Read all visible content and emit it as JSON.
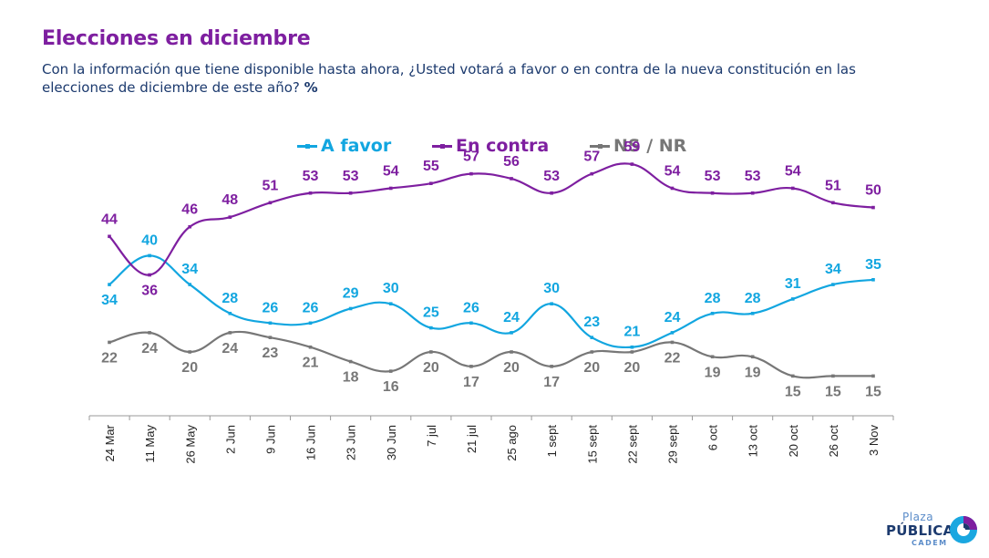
{
  "header": {
    "title": "Elecciones en diciembre",
    "subtitle": "Con la información que tiene disponible hasta ahora, ¿Usted votará a favor o en contra de la nueva constitución en las elecciones de diciembre de este año?",
    "subtitle_unit": "%"
  },
  "logo": {
    "line1": "Plaza",
    "line2": "PÚBLICA",
    "line3": "CADEM"
  },
  "colors": {
    "title": "#7e1fa0",
    "a_favor": "#12a6e0",
    "en_contra": "#7e1fa0",
    "ns_nr": "#777777",
    "axis": "#9a9a9a",
    "text_dark": "#1c3a6e"
  },
  "chart_data": {
    "type": "line",
    "title": "Elecciones en diciembre",
    "x": [
      "24 Mar",
      "11 May",
      "26 May",
      "2 Jun",
      "9 Jun",
      "16 Jun",
      "23 Jun",
      "30 Jun",
      "7 jul",
      "21 jul",
      "25 ago",
      "1 sept",
      "15 sept",
      "22 sept",
      "29 sept",
      "6 oct",
      "13 oct",
      "20 oct",
      "26 oct",
      "3 Nov"
    ],
    "series": [
      {
        "name": "A favor",
        "color": "#12a6e0",
        "values": [
          34,
          40,
          34,
          28,
          26,
          26,
          29,
          30,
          25,
          26,
          24,
          30,
          23,
          21,
          24,
          28,
          28,
          31,
          34,
          35
        ]
      },
      {
        "name": "En contra",
        "color": "#7e1fa0",
        "values": [
          44,
          36,
          46,
          48,
          51,
          53,
          53,
          54,
          55,
          57,
          56,
          53,
          57,
          59,
          54,
          53,
          53,
          54,
          51,
          50
        ]
      },
      {
        "name": "NS / NR",
        "color": "#777777",
        "values": [
          22,
          24,
          20,
          24,
          23,
          21,
          18,
          16,
          20,
          17,
          20,
          17,
          20,
          20,
          22,
          19,
          19,
          15,
          15,
          15
        ]
      }
    ],
    "legend": "top-center",
    "grid": false
  }
}
